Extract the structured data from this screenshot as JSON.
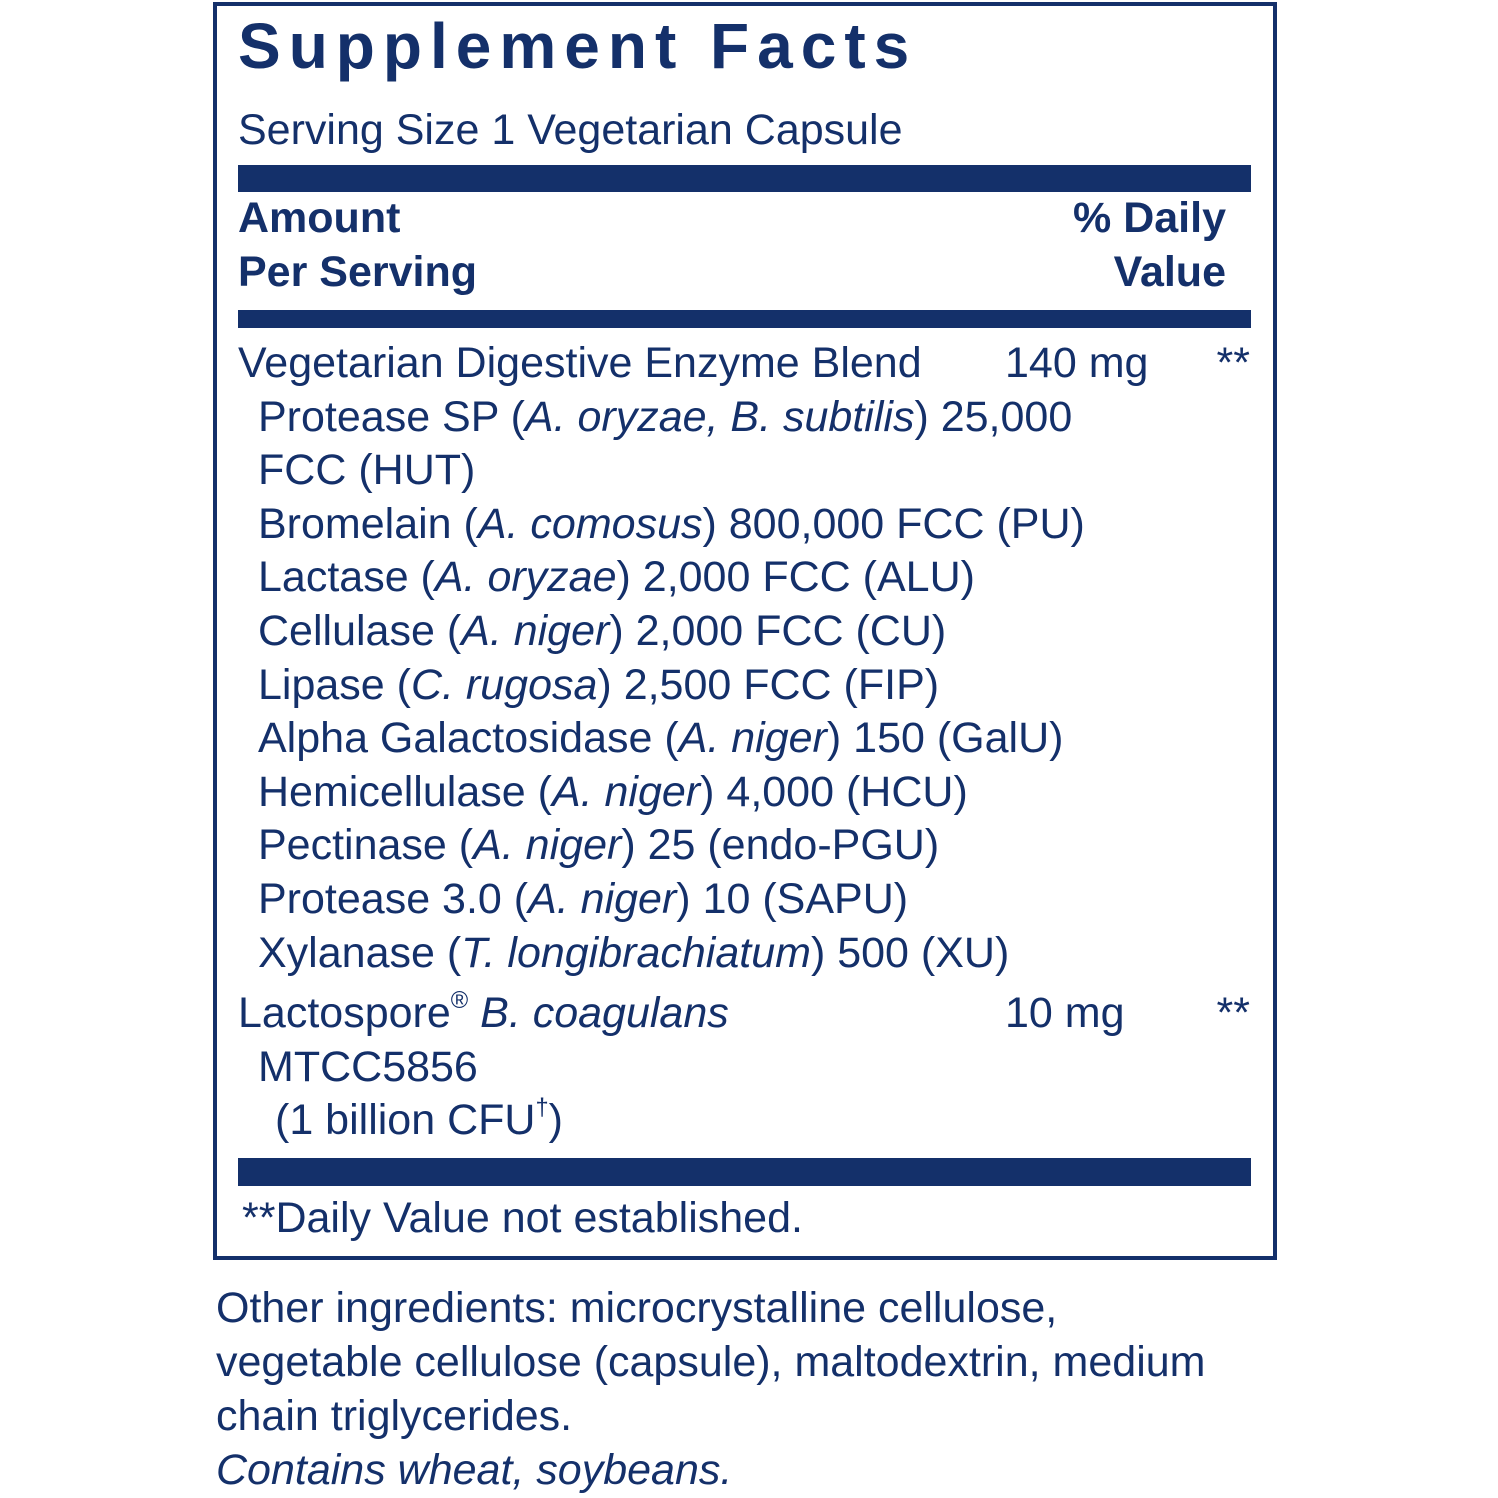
{
  "title": "Supplement Facts",
  "serving_size": "Serving Size 1 Vegetarian Capsule",
  "header": {
    "amount": [
      "Amount",
      "Per Serving"
    ],
    "daily_value": [
      "% Daily",
      "Value"
    ]
  },
  "rows": [
    {
      "lines": [
        [
          {
            "text": "Vegetarian Digestive Enzyme Blend"
          }
        ]
      ],
      "amount": "140 mg",
      "daily_value": "**",
      "sub_items": [
        {
          "lines": [
            [
              {
                "text": "Protease SP ("
              },
              {
                "text": "A. oryzae, B. subtilis",
                "italic": true
              },
              {
                "text": ") 25,000"
              }
            ],
            [
              {
                "text": "FCC (HUT)"
              }
            ]
          ]
        },
        {
          "lines": [
            [
              {
                "text": "Bromelain ("
              },
              {
                "text": "A. comosus",
                "italic": true
              },
              {
                "text": ") 800,000 FCC (PU)"
              }
            ]
          ]
        },
        {
          "lines": [
            [
              {
                "text": "Lactase ("
              },
              {
                "text": "A. oryzae",
                "italic": true
              },
              {
                "text": ") 2,000 FCC (ALU)"
              }
            ]
          ]
        },
        {
          "lines": [
            [
              {
                "text": "Cellulase ("
              },
              {
                "text": "A. niger",
                "italic": true
              },
              {
                "text": ") 2,000 FCC (CU)"
              }
            ]
          ]
        },
        {
          "lines": [
            [
              {
                "text": "Lipase ("
              },
              {
                "text": "C. rugosa",
                "italic": true
              },
              {
                "text": ") 2,500 FCC (FIP)"
              }
            ]
          ]
        },
        {
          "lines": [
            [
              {
                "text": "Alpha Galactosidase ("
              },
              {
                "text": "A. niger",
                "italic": true
              },
              {
                "text": ") 150 (GalU)"
              }
            ]
          ]
        },
        {
          "lines": [
            [
              {
                "text": "Hemicellulase ("
              },
              {
                "text": "A. niger",
                "italic": true
              },
              {
                "text": ") 4,000 (HCU)"
              }
            ]
          ]
        },
        {
          "lines": [
            [
              {
                "text": "Pectinase ("
              },
              {
                "text": "A. niger",
                "italic": true
              },
              {
                "text": ") 25 (endo-PGU)"
              }
            ]
          ]
        },
        {
          "lines": [
            [
              {
                "text": "Protease 3.0 ("
              },
              {
                "text": "A. niger",
                "italic": true
              },
              {
                "text": ") 10 (SAPU)"
              }
            ]
          ]
        },
        {
          "lines": [
            [
              {
                "text": "Xylanase ("
              },
              {
                "text": "T. longibrachiatum",
                "italic": true
              },
              {
                "text": ") 500 (XU)"
              }
            ]
          ]
        }
      ]
    },
    {
      "lines": [
        [
          {
            "text": "Lactospore"
          },
          {
            "text": "®",
            "sup": true
          },
          {
            "text": " B. coagulans",
            "italic": true
          }
        ]
      ],
      "amount": "10 mg",
      "daily_value": "**",
      "sub_items": [
        {
          "lines": [
            [
              {
                "text": "MTCC5856"
              }
            ]
          ]
        },
        {
          "lines": [
            [
              {
                "text": "(1 billion CFU"
              },
              {
                "text": "†",
                "sup": true
              },
              {
                "text": ")"
              }
            ]
          ],
          "level": 2
        }
      ]
    }
  ],
  "footnote": "**Daily Value not established.",
  "other_ingredients": [
    "Other ingredients: microcrystalline cellulose,",
    "vegetable cellulose (capsule), maltodextrin, medium",
    "chain triglycerides."
  ],
  "allergen": "Contains wheat, soybeans."
}
